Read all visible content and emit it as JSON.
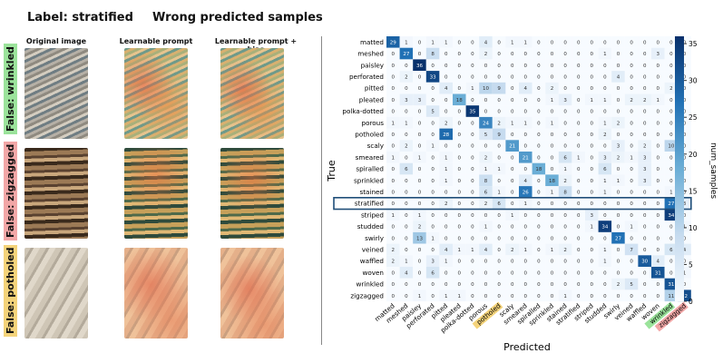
{
  "left": {
    "label_title": "Label: stratified",
    "wrong_title": "Wrong predicted samples",
    "columns": [
      "Original image",
      "Learnable prompt",
      "Learnable prompt + bias"
    ],
    "rows": [
      {
        "label": "False: wrinkled",
        "color": "#9be39b"
      },
      {
        "label": "False: zigzagged",
        "color": "#f2a7a7"
      },
      {
        "label": "False: potholed",
        "color": "#f4d37a"
      }
    ]
  },
  "chart_data": {
    "type": "heatmap",
    "title": "",
    "xlabel": "Predicted",
    "ylabel": "True",
    "colorbar_label": "num_samples",
    "colorbar_range": [
      0,
      36
    ],
    "colorbar_ticks": [
      0,
      5,
      10,
      15,
      20,
      25,
      30,
      35
    ],
    "highlight_row": "stratified",
    "highlighted_x_labels": {
      "potholed": "#f4d37a",
      "wrinkled": "#9be39b",
      "zigzagged": "#f2a7a7"
    },
    "categories": [
      "matted",
      "meshed",
      "paisley",
      "perforated",
      "pitted",
      "pleated",
      "polka-dotted",
      "porous",
      "potholed",
      "scaly",
      "smeared",
      "spiralled",
      "sprinkled",
      "stained",
      "stratified",
      "striped",
      "studded",
      "swirly",
      "veined",
      "waffled",
      "woven",
      "wrinkled",
      "zigzagged"
    ],
    "matrix": [
      [
        29,
        1,
        0,
        1,
        1,
        0,
        0,
        4,
        0,
        1,
        1,
        0,
        0,
        0,
        0,
        0,
        0,
        0,
        0,
        0,
        0,
        0,
        0
      ],
      [
        0,
        27,
        0,
        8,
        0,
        0,
        0,
        2,
        0,
        0,
        0,
        0,
        0,
        0,
        0,
        0,
        1,
        0,
        0,
        0,
        3,
        0,
        0
      ],
      [
        0,
        0,
        36,
        0,
        0,
        0,
        0,
        0,
        0,
        0,
        0,
        0,
        0,
        0,
        0,
        0,
        0,
        0,
        0,
        0,
        0,
        0,
        0
      ],
      [
        0,
        2,
        0,
        33,
        0,
        0,
        0,
        0,
        0,
        0,
        0,
        0,
        0,
        0,
        0,
        0,
        0,
        4,
        0,
        0,
        0,
        0,
        0
      ],
      [
        0,
        0,
        0,
        0,
        4,
        0,
        1,
        10,
        9,
        0,
        4,
        0,
        2,
        0,
        0,
        0,
        0,
        0,
        0,
        0,
        0,
        2,
        0
      ],
      [
        0,
        3,
        3,
        0,
        0,
        18,
        0,
        0,
        0,
        0,
        0,
        0,
        1,
        3,
        0,
        1,
        1,
        0,
        2,
        2,
        1,
        0,
        0
      ],
      [
        0,
        0,
        0,
        5,
        0,
        0,
        35,
        0,
        0,
        0,
        0,
        0,
        0,
        0,
        0,
        0,
        0,
        0,
        0,
        0,
        0,
        0,
        0
      ],
      [
        1,
        1,
        0,
        0,
        2,
        0,
        0,
        24,
        2,
        1,
        1,
        0,
        1,
        0,
        0,
        0,
        1,
        2,
        0,
        0,
        0,
        0,
        0
      ],
      [
        0,
        0,
        0,
        0,
        28,
        0,
        0,
        5,
        9,
        0,
        0,
        0,
        0,
        0,
        0,
        0,
        2,
        0,
        0,
        0,
        0,
        0,
        0
      ],
      [
        0,
        2,
        0,
        1,
        0,
        0,
        0,
        0,
        0,
        21,
        0,
        0,
        0,
        0,
        0,
        0,
        0,
        3,
        0,
        2,
        0,
        10,
        0
      ],
      [
        1,
        0,
        1,
        0,
        1,
        0,
        0,
        2,
        0,
        0,
        21,
        0,
        0,
        6,
        1,
        0,
        3,
        2,
        1,
        3,
        0,
        0,
        0
      ],
      [
        0,
        6,
        0,
        0,
        1,
        0,
        0,
        1,
        1,
        0,
        0,
        18,
        0,
        1,
        0,
        0,
        6,
        0,
        0,
        3,
        0,
        0,
        0
      ],
      [
        0,
        0,
        0,
        0,
        1,
        0,
        0,
        8,
        0,
        0,
        4,
        0,
        18,
        2,
        0,
        0,
        1,
        1,
        0,
        3,
        0,
        0,
        0
      ],
      [
        0,
        0,
        0,
        0,
        0,
        0,
        0,
        6,
        1,
        0,
        26,
        0,
        1,
        8,
        0,
        0,
        1,
        0,
        0,
        0,
        0,
        1,
        0
      ],
      [
        0,
        0,
        0,
        0,
        2,
        0,
        0,
        2,
        6,
        0,
        1,
        0,
        0,
        0,
        0,
        0,
        0,
        0,
        0,
        0,
        0,
        27,
        3
      ],
      [
        1,
        0,
        1,
        0,
        0,
        0,
        0,
        0,
        0,
        1,
        0,
        0,
        0,
        0,
        0,
        3,
        0,
        0,
        0,
        0,
        0,
        34,
        0
      ],
      [
        0,
        0,
        2,
        0,
        0,
        0,
        0,
        1,
        0,
        0,
        0,
        0,
        0,
        0,
        0,
        1,
        34,
        0,
        1,
        0,
        0,
        0,
        1
      ],
      [
        0,
        0,
        13,
        1,
        0,
        0,
        0,
        0,
        0,
        0,
        0,
        0,
        0,
        0,
        0,
        0,
        0,
        27,
        0,
        0,
        0,
        0,
        0
      ],
      [
        2,
        0,
        0,
        0,
        4,
        1,
        1,
        4,
        0,
        2,
        1,
        0,
        1,
        2,
        0,
        0,
        1,
        0,
        7,
        0,
        0,
        6,
        4
      ],
      [
        2,
        1,
        0,
        3,
        1,
        0,
        0,
        0,
        0,
        0,
        0,
        0,
        0,
        0,
        0,
        0,
        1,
        0,
        0,
        30,
        4,
        0,
        0
      ],
      [
        0,
        4,
        0,
        6,
        0,
        0,
        0,
        0,
        0,
        0,
        0,
        0,
        0,
        0,
        0,
        0,
        0,
        0,
        0,
        0,
        31,
        0,
        1
      ],
      [
        0,
        0,
        0,
        0,
        0,
        0,
        0,
        0,
        0,
        0,
        0,
        0,
        0,
        0,
        0,
        0,
        0,
        2,
        5,
        0,
        0,
        31,
        0
      ],
      [
        0,
        0,
        1,
        0,
        1,
        1,
        0,
        0,
        0,
        0,
        0,
        0,
        0,
        1,
        0,
        0,
        0,
        0,
        0,
        0,
        0,
        11,
        32
      ]
    ]
  }
}
